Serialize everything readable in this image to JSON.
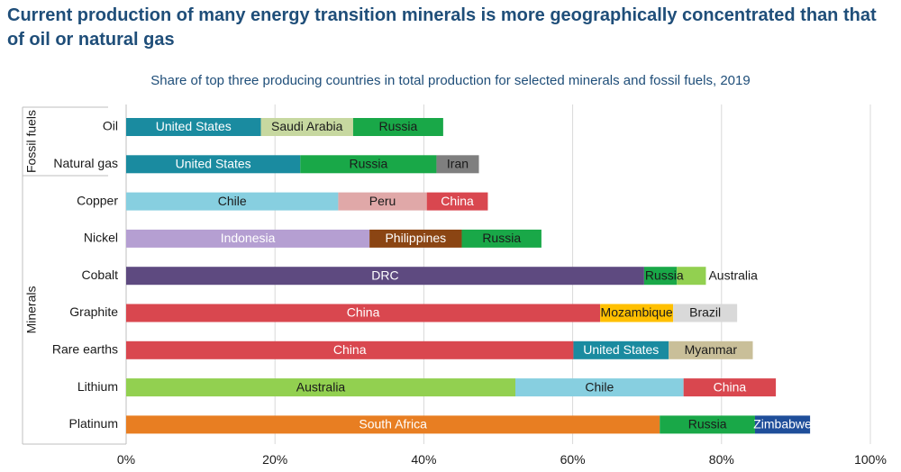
{
  "headline": "Current production of many energy transition minerals is more geographically concentrated than that of oil or natural gas",
  "colors": {
    "United States": "#1a8ba0",
    "Saudi Arabia": "#c7d8a0",
    "Russia": "#19a848",
    "Iran": "#7f7f7f",
    "Chile": "#87cfe0",
    "Peru": "#e0a8a8",
    "China": "#d9474f",
    "Indonesia": "#b59fd2",
    "Philippines": "#8b4513",
    "DRC": "#5e4a80",
    "Australia": "#92d050",
    "Mozambique": "#ffc000",
    "Brazil": "#d9d9d9",
    "Myanmar": "#c9bf99",
    "South Africa": "#e87e22",
    "Zimbabwe": "#1f4e9a",
    "axis": "#bfbfbf",
    "grid": "#d9d9d9"
  },
  "chart_data": {
    "type": "bar",
    "orientation": "horizontal",
    "stacked": true,
    "title": "Share of top three producing countries in total production for selected minerals and fossil fuels, 2019",
    "xlim": [
      0,
      100
    ],
    "x_ticks": [
      "0%",
      "20%",
      "40%",
      "60%",
      "80%",
      "100%"
    ],
    "grid": true,
    "groups": [
      {
        "label": "Fossil fuels",
        "categories": [
          "Oil",
          "Natural gas"
        ]
      },
      {
        "label": "Minerals",
        "categories": [
          "Copper",
          "Nickel",
          "Cobalt",
          "Graphite",
          "Rare earths",
          "Lithium",
          "Platinum"
        ]
      }
    ],
    "rows": [
      {
        "category": "Oil",
        "segments": [
          {
            "country": "United States",
            "value": 18.1
          },
          {
            "country": "Saudi Arabia",
            "value": 12.4
          },
          {
            "country": "Russia",
            "value": 12.1
          }
        ]
      },
      {
        "category": "Natural gas",
        "segments": [
          {
            "country": "United States",
            "value": 23.4
          },
          {
            "country": "Russia",
            "value": 18.3
          },
          {
            "country": "Iran",
            "value": 5.7
          }
        ]
      },
      {
        "category": "Copper",
        "segments": [
          {
            "country": "Chile",
            "value": 28.5
          },
          {
            "country": "Peru",
            "value": 11.9
          },
          {
            "country": "China",
            "value": 8.2
          }
        ]
      },
      {
        "category": "Nickel",
        "segments": [
          {
            "country": "Indonesia",
            "value": 32.7
          },
          {
            "country": "Philippines",
            "value": 12.4
          },
          {
            "country": "Russia",
            "value": 10.7
          }
        ]
      },
      {
        "category": "Cobalt",
        "segments": [
          {
            "country": "DRC",
            "value": 69.6
          },
          {
            "country": "Russia",
            "value": 4.4
          },
          {
            "country": "Australia",
            "value": 3.9
          }
        ]
      },
      {
        "category": "Graphite",
        "segments": [
          {
            "country": "China",
            "value": 63.7
          },
          {
            "country": "Mozambique",
            "value": 9.8
          },
          {
            "country": "Brazil",
            "value": 8.6
          }
        ]
      },
      {
        "category": "Rare earths",
        "segments": [
          {
            "country": "China",
            "value": 60.1
          },
          {
            "country": "United States",
            "value": 12.8
          },
          {
            "country": "Myanmar",
            "value": 11.3
          }
        ]
      },
      {
        "category": "Lithium",
        "segments": [
          {
            "country": "Australia",
            "value": 52.3
          },
          {
            "country": "Chile",
            "value": 22.6
          },
          {
            "country": "China",
            "value": 12.4
          }
        ]
      },
      {
        "category": "Platinum",
        "segments": [
          {
            "country": "South Africa",
            "value": 71.7
          },
          {
            "country": "Russia",
            "value": 12.8
          },
          {
            "country": "Zimbabwe",
            "value": 7.4
          }
        ]
      }
    ]
  }
}
